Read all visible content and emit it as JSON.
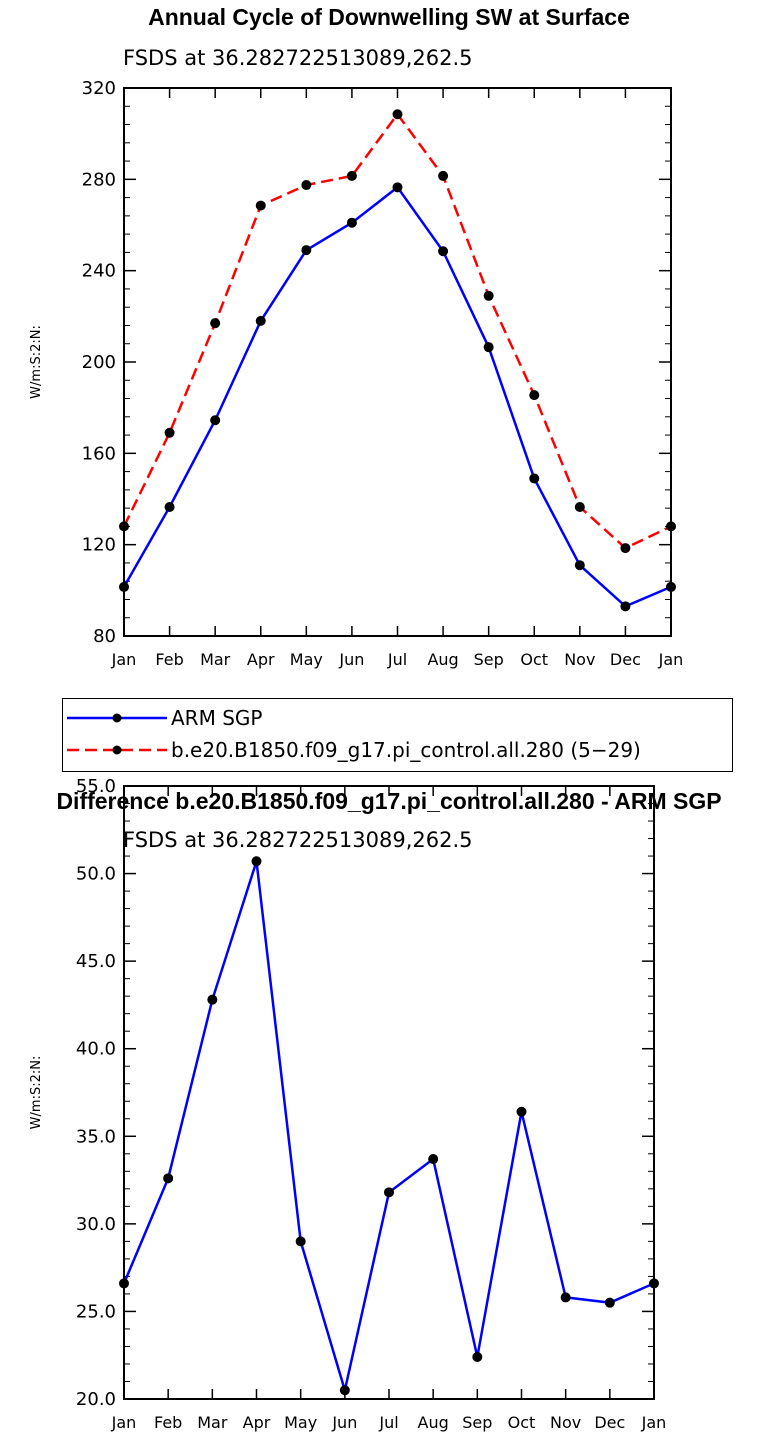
{
  "chart_data": [
    {
      "type": "line",
      "title": "Annual Cycle of Downwelling SW at Surface",
      "subtitle": "FSDS at 36.282722513089,262.5",
      "ylabel": "W/m:S:2:N:",
      "xlabel": "",
      "categories": [
        "Jan",
        "Feb",
        "Mar",
        "Apr",
        "May",
        "Jun",
        "Jul",
        "Aug",
        "Sep",
        "Oct",
        "Nov",
        "Dec",
        "Jan"
      ],
      "ylim": [
        80,
        320
      ],
      "yticks": [
        "80",
        "120",
        "160",
        "200",
        "240",
        "280",
        "320"
      ],
      "series": [
        {
          "name": "ARM SGP",
          "color": "#0000ff",
          "dash": "solid",
          "values": [
            101.5,
            136.5,
            174.5,
            218,
            249,
            261,
            276.5,
            248.5,
            206.5,
            149,
            111,
            93,
            101.5
          ]
        },
        {
          "name": "b.e20.B1850.f09_g17.pi_control.all.280 (5−29)",
          "color": "#ff0000",
          "dash": "dashed",
          "values": [
            128,
            169,
            217,
            268.5,
            277.5,
            281.5,
            308.5,
            281.5,
            229,
            185.5,
            136.5,
            118.5,
            128
          ]
        }
      ],
      "legend": "below"
    },
    {
      "type": "line",
      "title": "Difference b.e20.B1850.f09_g17.pi_control.all.280 - ARM SGP",
      "subtitle": "FSDS at 36.282722513089,262.5",
      "ylabel": "W/m:S:2:N:",
      "xlabel": "",
      "categories": [
        "Jan",
        "Feb",
        "Mar",
        "Apr",
        "May",
        "Jun",
        "Jul",
        "Aug",
        "Sep",
        "Oct",
        "Nov",
        "Dec",
        "Jan"
      ],
      "ylim": [
        20,
        55
      ],
      "yticks": [
        "20.0",
        "25.0",
        "30.0",
        "35.0",
        "40.0",
        "45.0",
        "50.0",
        "55.0"
      ],
      "series": [
        {
          "color": "#0000ff",
          "dash": "solid",
          "values": [
            26.6,
            32.6,
            42.8,
            50.7,
            29.0,
            20.5,
            31.8,
            33.7,
            22.4,
            36.4,
            25.8,
            25.5,
            26.6
          ]
        }
      ]
    }
  ]
}
